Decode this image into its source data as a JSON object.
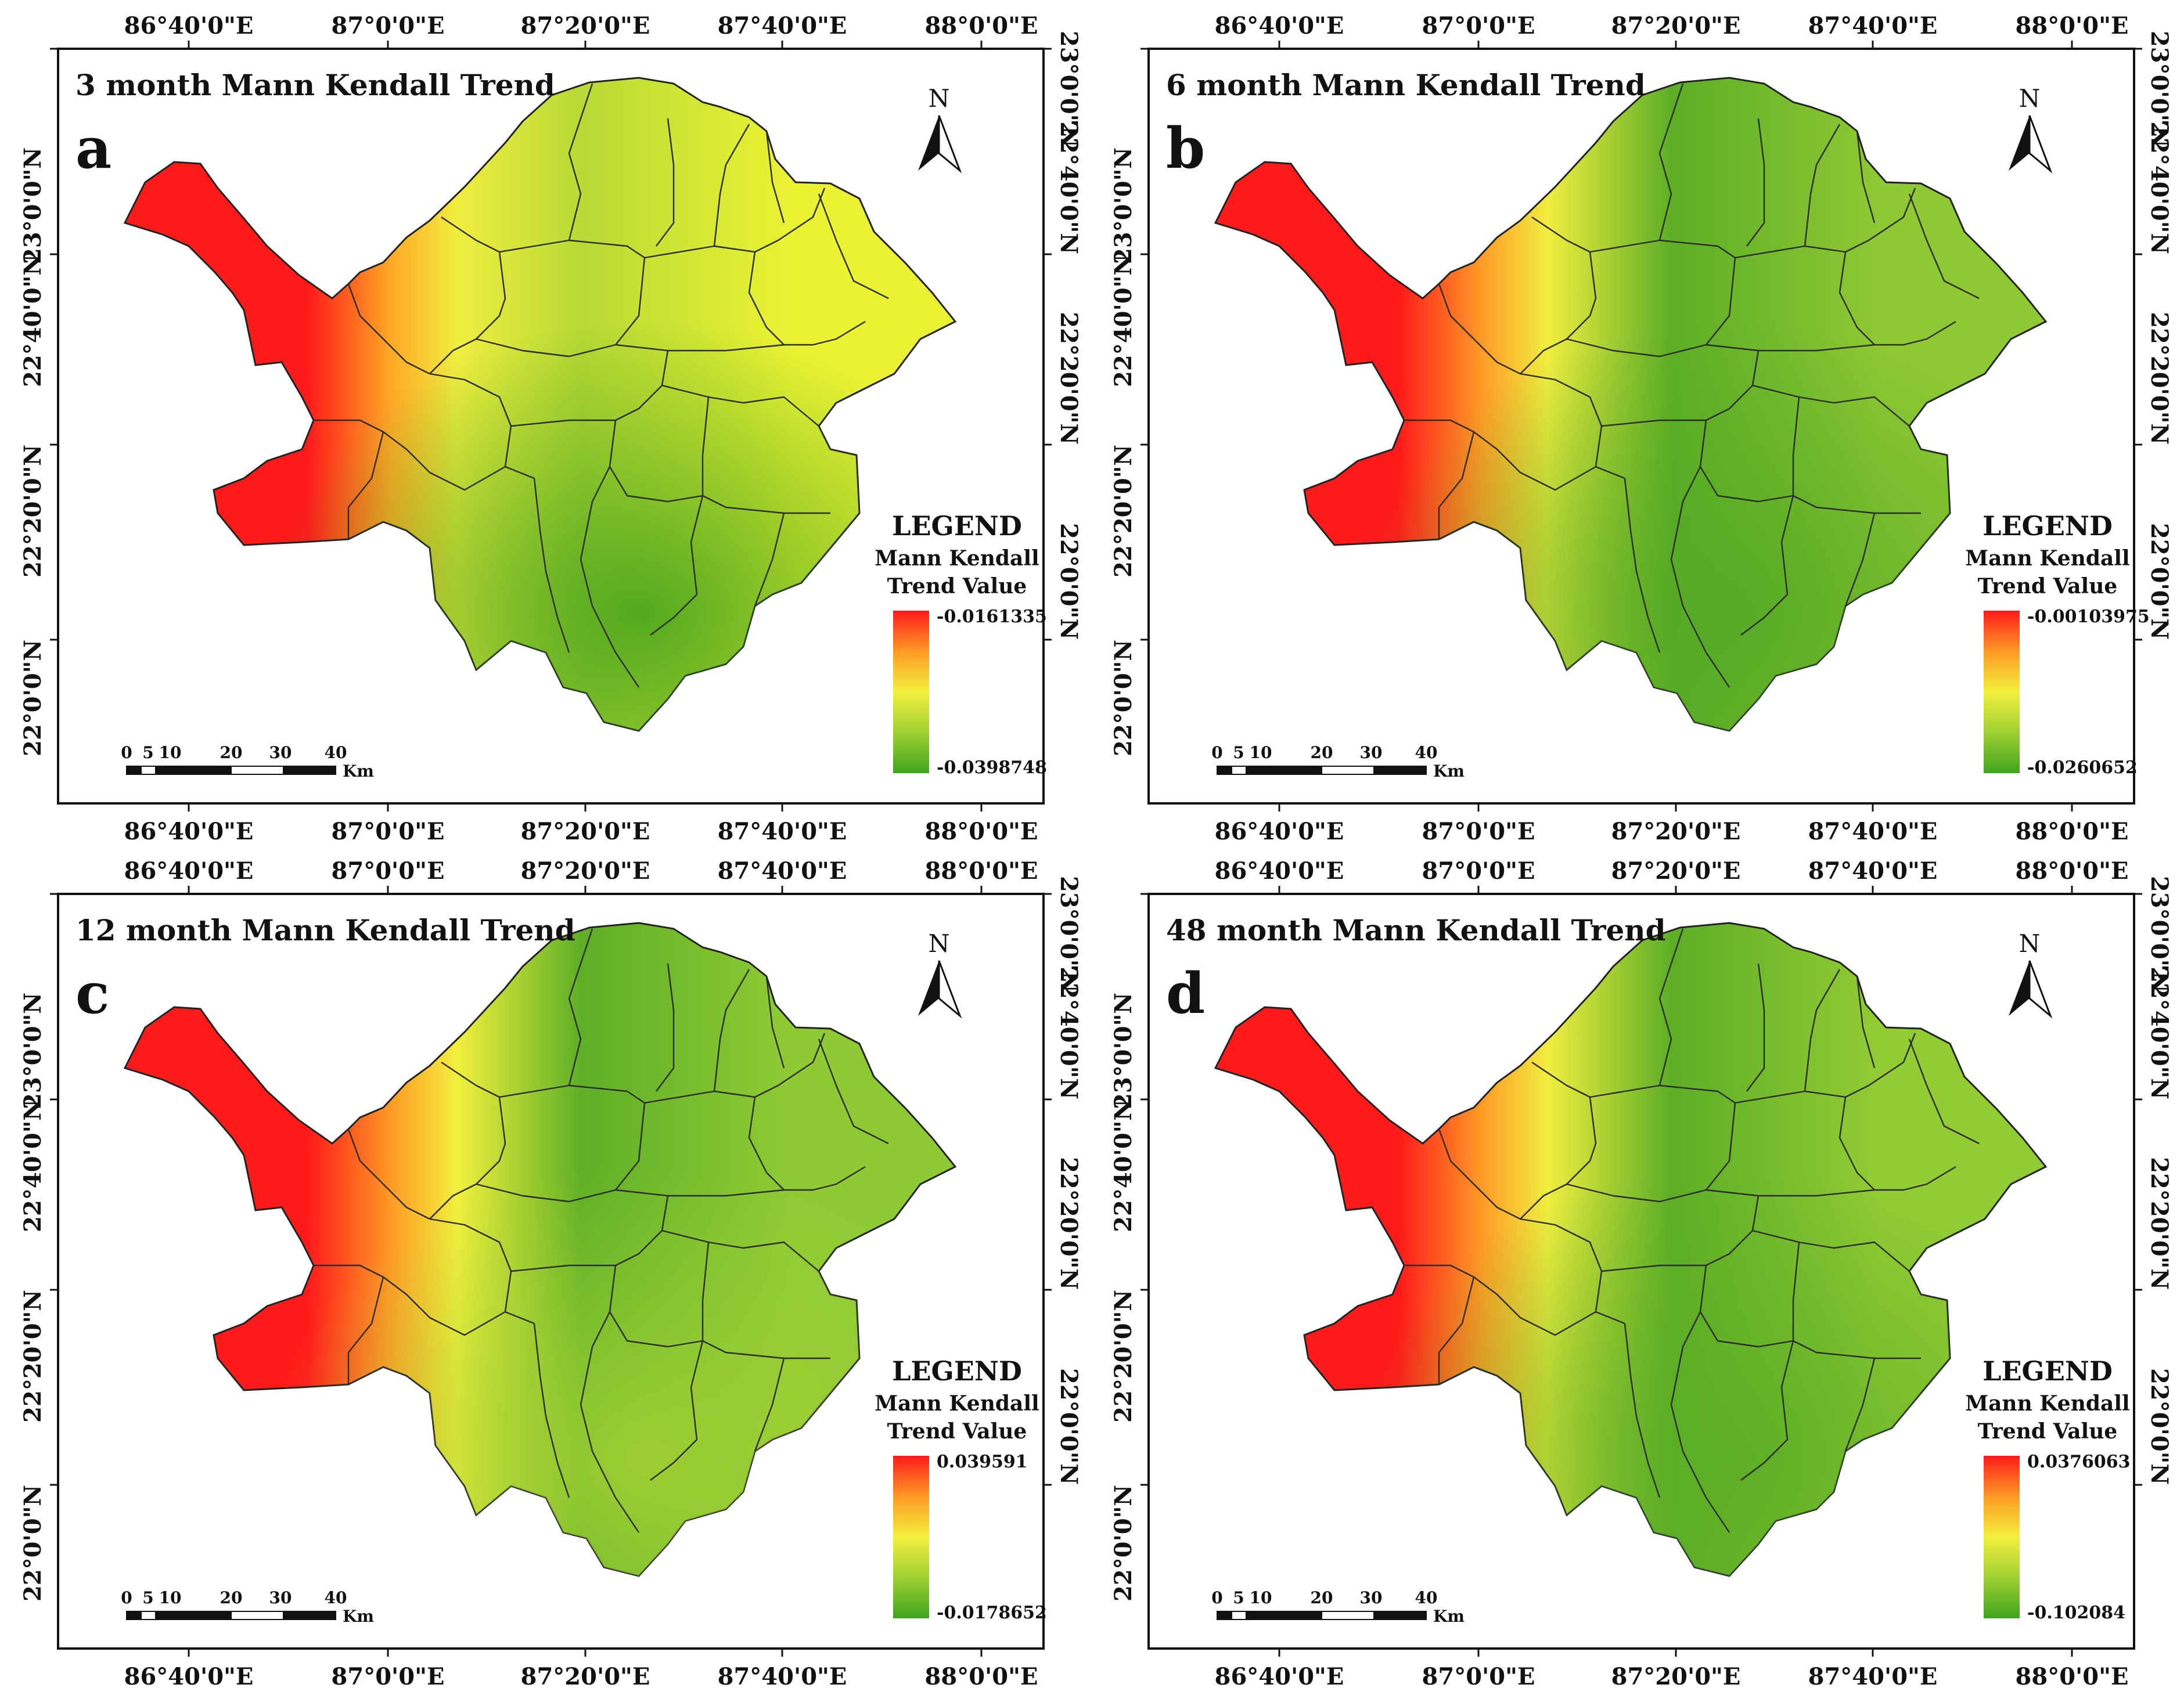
{
  "panels": [
    {
      "id": "a",
      "title": "3 month Mann Kendall Trend",
      "letter": "a",
      "legend": {
        "heading": "LEGEND",
        "line1": "Mann Kendall",
        "line2": "Trend Value",
        "max": "-0.0161335",
        "min": "-0.0398748"
      },
      "colors": {
        "west": "#ff1a1a",
        "mid": "#ffa826",
        "centre": "#f0ee40",
        "east": "#eaf233",
        "south": "#3f9f1c",
        "body": "#b8d935"
      }
    },
    {
      "id": "b",
      "title": "6 month Mann Kendall Trend",
      "letter": "b",
      "legend": {
        "heading": "LEGEND",
        "line1": "Mann Kendall",
        "line2": "Trend Value",
        "max": "-0.00103975",
        "min": "-0.0260652"
      },
      "colors": {
        "west": "#ff1a1a",
        "mid": "#ff9a26",
        "centre": "#f0ee40",
        "east": "#8fc834",
        "south": "#52a824",
        "body": "#5cae26"
      }
    },
    {
      "id": "c",
      "title": "12 month Mann Kendall Trend",
      "letter": "c",
      "legend": {
        "heading": "LEGEND",
        "line1": "Mann Kendall",
        "line2": "Trend Value",
        "max": "0.039591",
        "min": "-0.0178652"
      },
      "colors": {
        "west": "#ff1a1a",
        "mid": "#ff9a26",
        "centre": "#f2f03d",
        "east": "#8fca34",
        "south": "#a5d235",
        "body": "#5daf27"
      }
    },
    {
      "id": "d",
      "title": "48 month Mann Kendall Trend",
      "letter": "d",
      "legend": {
        "heading": "LEGEND",
        "line1": "Mann Kendall",
        "line2": "Trend Value",
        "max": "0.0376063",
        "min": "-0.102084"
      },
      "colors": {
        "west": "#ff1a1a",
        "mid": "#ff9a26",
        "centre": "#f0ee40",
        "east": "#93cb34",
        "south": "#5aad26",
        "body": "#5cae26"
      }
    }
  ],
  "longitude_labels": [
    "86°40'0\"E",
    "87°0'0\"E",
    "87°20'0\"E",
    "87°40'0\"E",
    "88°0'0\"E"
  ],
  "latitude_labels": [
    "23°0'0\"N",
    "22°40'0\"N",
    "22°20'0\"N",
    "22°0'0\"N"
  ],
  "scale_bar": {
    "ticks": [
      "0",
      "5",
      "10",
      "20",
      "30",
      "40"
    ],
    "unit": "Km"
  },
  "north_label": "N",
  "legend_ramp_colors": [
    "#ff1a1a",
    "#ff9a26",
    "#f2f03d",
    "#9fd034",
    "#3fa51c"
  ]
}
